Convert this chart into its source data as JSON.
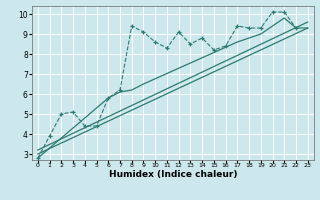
{
  "xlabel": "Humidex (Indice chaleur)",
  "bg_color": "#cce8ec",
  "line_color": "#2d7a70",
  "grid_color": "#ffffff",
  "xlim": [
    -0.5,
    23.5
  ],
  "ylim": [
    2.7,
    10.4
  ],
  "yticks": [
    3,
    4,
    5,
    6,
    7,
    8,
    9,
    10
  ],
  "xticks": [
    0,
    1,
    2,
    3,
    4,
    5,
    6,
    7,
    8,
    9,
    10,
    11,
    12,
    13,
    14,
    15,
    16,
    17,
    18,
    19,
    20,
    21,
    22,
    23
  ],
  "series": [
    {
      "x": [
        0,
        1,
        2,
        3,
        4,
        5,
        6,
        7,
        8,
        9,
        10,
        11,
        12,
        13,
        14,
        15,
        16,
        17,
        18,
        19,
        20,
        21,
        22
      ],
      "y": [
        2.8,
        3.9,
        5.0,
        5.1,
        4.4,
        4.4,
        5.8,
        6.2,
        9.4,
        9.1,
        8.6,
        8.3,
        9.1,
        8.5,
        8.8,
        8.2,
        8.4,
        9.4,
        9.3,
        9.3,
        10.1,
        10.1,
        9.3
      ],
      "marker": true,
      "linestyle": "--"
    },
    {
      "x": [
        0,
        23
      ],
      "y": [
        3.0,
        9.3
      ],
      "marker": false,
      "linestyle": "-"
    },
    {
      "x": [
        0,
        23
      ],
      "y": [
        3.2,
        9.6
      ],
      "marker": false,
      "linestyle": "-"
    },
    {
      "x": [
        0,
        6,
        7,
        8,
        9,
        17,
        19,
        20,
        21,
        22,
        23
      ],
      "y": [
        2.8,
        5.8,
        6.1,
        6.2,
        6.5,
        8.6,
        9.0,
        9.4,
        9.8,
        9.3,
        9.3
      ],
      "marker": false,
      "linestyle": "-"
    }
  ]
}
